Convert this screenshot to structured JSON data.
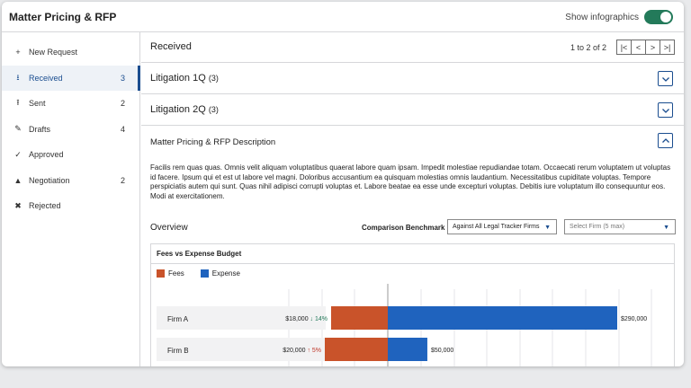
{
  "app": {
    "title": "Matter Pricing & RFP",
    "infographics_label": "Show infographics"
  },
  "sidebar": {
    "items": [
      {
        "icon": "plus-icon",
        "glyph": "+",
        "label": "New Request",
        "count": ""
      },
      {
        "icon": "inbox-icon",
        "glyph": "⭳",
        "label": "Received",
        "count": "3"
      },
      {
        "icon": "upload-icon",
        "glyph": "⭱",
        "label": "Sent",
        "count": "2"
      },
      {
        "icon": "pencil-icon",
        "glyph": "✎",
        "label": "Drafts",
        "count": "4"
      },
      {
        "icon": "check-icon",
        "glyph": "✓",
        "label": "Approved",
        "count": ""
      },
      {
        "icon": "warning-icon",
        "glyph": "▲",
        "label": "Negotiation",
        "count": "2"
      },
      {
        "icon": "x-icon",
        "glyph": "✖",
        "label": "Rejected",
        "count": ""
      }
    ]
  },
  "main": {
    "title": "Received",
    "pager_text": "1 to 2 of 2",
    "pager": {
      "first": "|<",
      "prev": "<",
      "next": ">",
      "last": ">|"
    },
    "sections": [
      {
        "title": "Litigation 1Q",
        "count": "(3)"
      },
      {
        "title": "Litigation 2Q",
        "count": "(3)"
      }
    ],
    "description": {
      "title": "Matter Pricing & RFP Description",
      "text": "Facilis rem quas quas. Omnis velit aliquam voluptatibus quaerat labore quam ipsam. Impedit molestiae repudiandae totam. Occaecati rerum voluptatem ut voluptas id facere. Ipsum qui et est ut labore vel magni. Doloribus accusantium ea quisquam molestias omnis laudantium. Necessitatibus cupiditate voluptas. Tempore perspiciatis autem qui sunt. Quas nihil adipisci corrupti voluptas et. Labore beatae ea esse unde excepturi voluptas. Debitis iure voluptatum illo consequuntur eos. Modi at exercitationem."
    },
    "overview": {
      "title": "Overview",
      "benchmark_label": "Comparison Benchmark",
      "benchmark_value": "Against All Legal Tracker Firms",
      "firm_placeholder": "Select Firm (5 max)"
    }
  },
  "colors": {
    "fees": "#c9532a",
    "expense": "#1f63be",
    "down": "#237a5a",
    "up": "#c0392b"
  },
  "chart_data": {
    "type": "bar",
    "title": "Fees vs Expense Budget",
    "legend": [
      "Fees",
      "Expense"
    ],
    "rows": [
      {
        "firm": "Firm A",
        "fees": 18000,
        "fees_label": "$18,000",
        "change": "14%",
        "direction": "down",
        "expense": 290000,
        "expense_label": "$290,000"
      },
      {
        "firm": "Firm B",
        "fees": 20000,
        "fees_label": "$20,000",
        "change": "5%",
        "direction": "up",
        "expense": 50000,
        "expense_label": "$50,000"
      }
    ]
  }
}
